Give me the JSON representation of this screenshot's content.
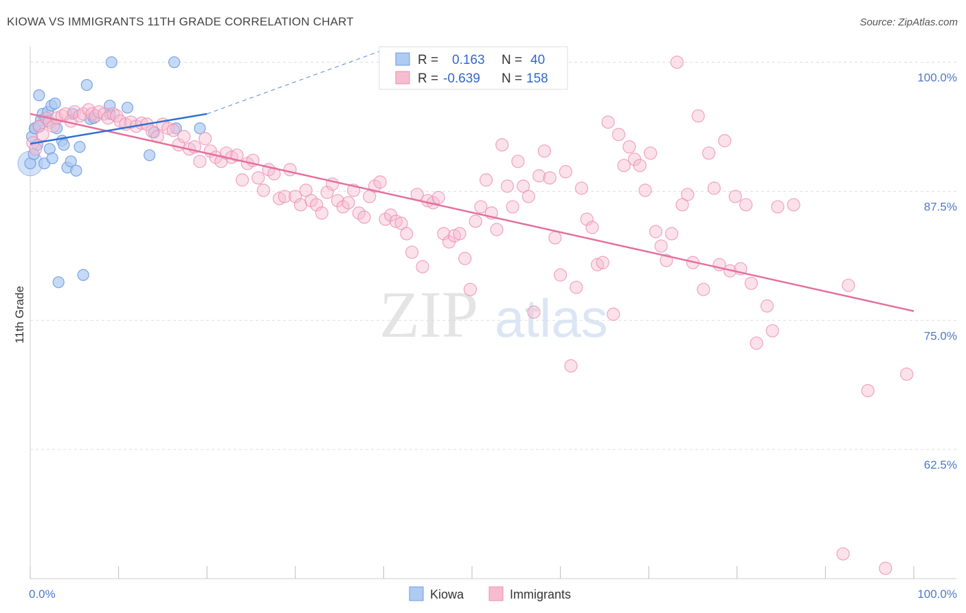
{
  "header": {
    "title": "KIOWA VS IMMIGRANTS 11TH GRADE CORRELATION CHART",
    "source": "Source: ZipAtlas.com"
  },
  "watermark": {
    "zip": "ZIP",
    "atlas": "atlas"
  },
  "legend": {
    "rows": [
      {
        "r_label": "R =",
        "r_value": "0.163",
        "n_label": "N =",
        "n_value": "40"
      },
      {
        "r_label": "R =",
        "r_value": "-0.639",
        "n_label": "N =",
        "n_value": "158"
      }
    ]
  },
  "colors": {
    "kiowa_fill": "#aecbf2",
    "kiowa_stroke": "#6f9be0",
    "kiowa_line": "#2f6fd1",
    "immigrants_fill": "#f7bcd0",
    "immigrants_stroke": "#ec8fb1",
    "immigrants_line": "#e4709b",
    "axis_text": "#4a78c8",
    "grid": "#dddddd"
  },
  "chart_data": {
    "type": "scatter",
    "ylabel": "11th Grade",
    "xlim": [
      0,
      100
    ],
    "ylim": [
      50,
      101.5
    ],
    "x_tick_labels": [
      "0.0%",
      "100.0%"
    ],
    "y_ticks": [
      {
        "value": 100,
        "label": "100.0%"
      },
      {
        "value": 87.5,
        "label": "87.5%"
      },
      {
        "value": 75,
        "label": "75.0%"
      },
      {
        "value": 62.5,
        "label": "62.5%"
      }
    ],
    "grid": "horizontal-dashed",
    "series": [
      {
        "name": "Kiowa",
        "trend": {
          "solid": [
            [
              0,
              92.1
            ],
            [
              20,
              95.0
            ]
          ],
          "dashed": [
            [
              20,
              95.0
            ],
            [
              40,
              101.2
            ]
          ]
        },
        "points": [
          [
            0.0,
            90.2
          ],
          [
            0.2,
            92.8
          ],
          [
            0.4,
            91.1
          ],
          [
            0.6,
            93.6
          ],
          [
            0.8,
            92.0
          ],
          [
            1.0,
            96.8
          ],
          [
            1.2,
            94.4
          ],
          [
            1.4,
            95.0
          ],
          [
            1.6,
            90.2
          ],
          [
            1.8,
            94.6
          ],
          [
            2.0,
            95.2
          ],
          [
            2.2,
            91.6
          ],
          [
            2.4,
            95.8
          ],
          [
            2.5,
            90.7
          ],
          [
            2.8,
            96.0
          ],
          [
            3.0,
            93.6
          ],
          [
            3.2,
            78.7
          ],
          [
            3.6,
            92.4
          ],
          [
            3.8,
            92.0
          ],
          [
            4.2,
            89.8
          ],
          [
            4.6,
            90.4
          ],
          [
            4.8,
            95.0
          ],
          [
            5.2,
            89.5
          ],
          [
            5.6,
            91.8
          ],
          [
            6.0,
            79.4
          ],
          [
            6.4,
            97.8
          ],
          [
            6.8,
            94.5
          ],
          [
            7.2,
            94.6
          ],
          [
            9.0,
            95.0
          ],
          [
            9.2,
            100.0
          ],
          [
            9.0,
            95.8
          ],
          [
            11.0,
            95.6
          ],
          [
            13.5,
            91.0
          ],
          [
            14.0,
            93.2
          ],
          [
            16.3,
            100.0
          ],
          [
            16.5,
            93.6
          ],
          [
            19.2,
            93.6
          ],
          [
            0.5,
            93.6
          ],
          [
            2.0,
            94.3
          ],
          [
            1.0,
            93.8
          ]
        ],
        "sizes": [
          2.8
        ]
      },
      {
        "name": "Immigrants",
        "trend": {
          "solid": [
            [
              0,
              95.0
            ],
            [
              100,
              75.9
            ]
          ]
        },
        "points": [
          [
            0.3,
            92.2
          ],
          [
            0.6,
            91.6
          ],
          [
            1.0,
            93.8
          ],
          [
            1.4,
            93.0
          ],
          [
            1.8,
            94.6
          ],
          [
            2.2,
            94.2
          ],
          [
            2.6,
            93.8
          ],
          [
            3.0,
            94.6
          ],
          [
            3.6,
            94.8
          ],
          [
            4.0,
            95.0
          ],
          [
            4.6,
            94.3
          ],
          [
            5.0,
            95.2
          ],
          [
            5.6,
            94.8
          ],
          [
            6.0,
            95.0
          ],
          [
            6.6,
            95.4
          ],
          [
            7.0,
            95.0
          ],
          [
            7.4,
            94.8
          ],
          [
            7.8,
            95.2
          ],
          [
            8.4,
            95.0
          ],
          [
            8.8,
            94.6
          ],
          [
            9.4,
            95.0
          ],
          [
            9.8,
            94.8
          ],
          [
            10.2,
            94.3
          ],
          [
            10.8,
            94.0
          ],
          [
            11.4,
            94.2
          ],
          [
            12.0,
            93.8
          ],
          [
            12.6,
            94.1
          ],
          [
            13.2,
            94.0
          ],
          [
            13.8,
            93.3
          ],
          [
            14.4,
            92.8
          ],
          [
            15.0,
            94.0
          ],
          [
            15.6,
            93.6
          ],
          [
            16.2,
            93.4
          ],
          [
            16.8,
            92.0
          ],
          [
            17.4,
            92.8
          ],
          [
            18.0,
            91.6
          ],
          [
            18.6,
            91.8
          ],
          [
            19.2,
            90.4
          ],
          [
            19.8,
            92.6
          ],
          [
            20.4,
            91.4
          ],
          [
            21.0,
            90.8
          ],
          [
            21.6,
            90.4
          ],
          [
            22.2,
            91.2
          ],
          [
            22.8,
            90.8
          ],
          [
            23.4,
            91.0
          ],
          [
            24.0,
            88.6
          ],
          [
            24.6,
            90.2
          ],
          [
            25.2,
            90.5
          ],
          [
            25.8,
            88.8
          ],
          [
            26.4,
            87.6
          ],
          [
            27.0,
            89.6
          ],
          [
            27.6,
            89.2
          ],
          [
            28.2,
            86.8
          ],
          [
            28.8,
            87.0
          ],
          [
            29.4,
            89.6
          ],
          [
            30.0,
            87.0
          ],
          [
            30.6,
            86.2
          ],
          [
            31.2,
            87.6
          ],
          [
            31.8,
            86.6
          ],
          [
            32.4,
            86.2
          ],
          [
            33.0,
            85.4
          ],
          [
            33.6,
            87.4
          ],
          [
            34.2,
            88.2
          ],
          [
            34.8,
            86.6
          ],
          [
            35.4,
            86.0
          ],
          [
            36.0,
            86.4
          ],
          [
            36.6,
            87.6
          ],
          [
            37.2,
            85.4
          ],
          [
            37.8,
            85.0
          ],
          [
            38.4,
            87.0
          ],
          [
            39.0,
            88.0
          ],
          [
            39.6,
            88.4
          ],
          [
            40.2,
            84.8
          ],
          [
            40.8,
            85.2
          ],
          [
            41.4,
            84.6
          ],
          [
            42.0,
            84.4
          ],
          [
            42.6,
            83.4
          ],
          [
            43.2,
            81.6
          ],
          [
            43.8,
            87.2
          ],
          [
            44.4,
            80.2
          ],
          [
            45.0,
            86.6
          ],
          [
            45.6,
            86.4
          ],
          [
            46.2,
            86.9
          ],
          [
            46.8,
            83.4
          ],
          [
            47.4,
            82.6
          ],
          [
            48.0,
            83.2
          ],
          [
            48.6,
            83.4
          ],
          [
            49.2,
            81.0
          ],
          [
            49.8,
            78.0
          ],
          [
            50.4,
            84.6
          ],
          [
            51.0,
            86.0
          ],
          [
            51.6,
            88.6
          ],
          [
            52.2,
            85.4
          ],
          [
            52.8,
            83.8
          ],
          [
            53.4,
            92.0
          ],
          [
            54.0,
            88.0
          ],
          [
            54.6,
            86.0
          ],
          [
            55.2,
            90.4
          ],
          [
            55.8,
            88.0
          ],
          [
            56.4,
            87.0
          ],
          [
            57.0,
            75.8
          ],
          [
            57.6,
            89.0
          ],
          [
            58.2,
            91.4
          ],
          [
            58.8,
            88.8
          ],
          [
            59.4,
            83.0
          ],
          [
            60.0,
            79.4
          ],
          [
            60.6,
            89.4
          ],
          [
            61.2,
            70.6
          ],
          [
            61.8,
            78.2
          ],
          [
            62.4,
            87.8
          ],
          [
            63.0,
            84.8
          ],
          [
            63.6,
            84.0
          ],
          [
            64.2,
            80.4
          ],
          [
            64.8,
            80.6
          ],
          [
            65.4,
            94.2
          ],
          [
            66.0,
            75.6
          ],
          [
            66.6,
            93.0
          ],
          [
            67.2,
            90.0
          ],
          [
            67.8,
            91.8
          ],
          [
            68.4,
            90.6
          ],
          [
            69.0,
            90.0
          ],
          [
            69.6,
            87.6
          ],
          [
            70.2,
            91.2
          ],
          [
            70.8,
            83.6
          ],
          [
            71.4,
            82.2
          ],
          [
            72.0,
            80.8
          ],
          [
            72.6,
            83.4
          ],
          [
            73.2,
            100.0
          ],
          [
            73.8,
            86.2
          ],
          [
            74.4,
            87.2
          ],
          [
            75.0,
            80.6
          ],
          [
            75.6,
            94.8
          ],
          [
            76.2,
            78.0
          ],
          [
            76.8,
            91.2
          ],
          [
            77.4,
            87.8
          ],
          [
            78.0,
            80.4
          ],
          [
            78.6,
            92.4
          ],
          [
            79.2,
            79.8
          ],
          [
            79.8,
            87.0
          ],
          [
            80.4,
            80.0
          ],
          [
            81.0,
            86.2
          ],
          [
            81.6,
            78.6
          ],
          [
            82.2,
            72.8
          ],
          [
            83.4,
            76.4
          ],
          [
            84.0,
            74.0
          ],
          [
            84.6,
            86.0
          ],
          [
            86.4,
            86.2
          ],
          [
            92.0,
            52.4
          ],
          [
            92.6,
            78.4
          ],
          [
            94.8,
            68.2
          ],
          [
            96.8,
            51.0
          ],
          [
            99.2,
            69.8
          ]
        ]
      }
    ]
  },
  "bottom_legend": {
    "items": [
      "Kiowa",
      "Immigrants"
    ]
  }
}
